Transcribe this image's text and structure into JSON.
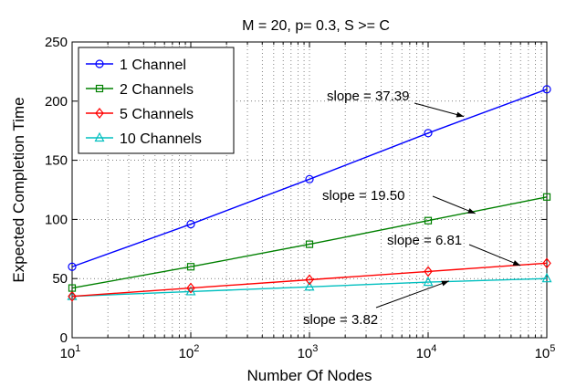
{
  "chart_data": {
    "type": "line",
    "title": "M = 20, p= 0.3, S >= C",
    "xlabel": "Number Of Nodes",
    "ylabel": "Expected Completion Time",
    "xscale": "log",
    "x": [
      10,
      100,
      1000,
      10000,
      100000
    ],
    "xticklabels": [
      {
        "base": "10",
        "exp": "1"
      },
      {
        "base": "10",
        "exp": "2"
      },
      {
        "base": "10",
        "exp": "3"
      },
      {
        "base": "10",
        "exp": "4"
      },
      {
        "base": "10",
        "exp": "5"
      }
    ],
    "ylim": [
      0,
      250
    ],
    "yticks": [
      0,
      50,
      100,
      150,
      200,
      250
    ],
    "grid": true,
    "legend_position": "top-left",
    "series": [
      {
        "name": "1 Channel",
        "color": "#0000ff",
        "marker": "circle",
        "values": [
          60,
          96,
          134,
          173,
          210
        ]
      },
      {
        "name": "2 Channels",
        "color": "#008000",
        "marker": "square",
        "values": [
          42,
          60,
          79,
          99,
          119
        ]
      },
      {
        "name": "5 Channels",
        "color": "#ff0000",
        "marker": "diamond",
        "values": [
          35,
          42,
          49,
          56,
          63
        ]
      },
      {
        "name": "10 Channels",
        "color": "#00bfbf",
        "marker": "triangle",
        "values": [
          35,
          39,
          43,
          47,
          50
        ]
      }
    ],
    "annotations": [
      {
        "text": "slope = 37.39",
        "target_x": 20000,
        "target_y": 187
      },
      {
        "text": "slope = 19.50",
        "target_x": 25000,
        "target_y": 105
      },
      {
        "text": "slope = 6.81",
        "target_x": 60000,
        "target_y": 61
      },
      {
        "text": "slope = 3.82",
        "target_x": 15000,
        "target_y": 48
      }
    ]
  }
}
